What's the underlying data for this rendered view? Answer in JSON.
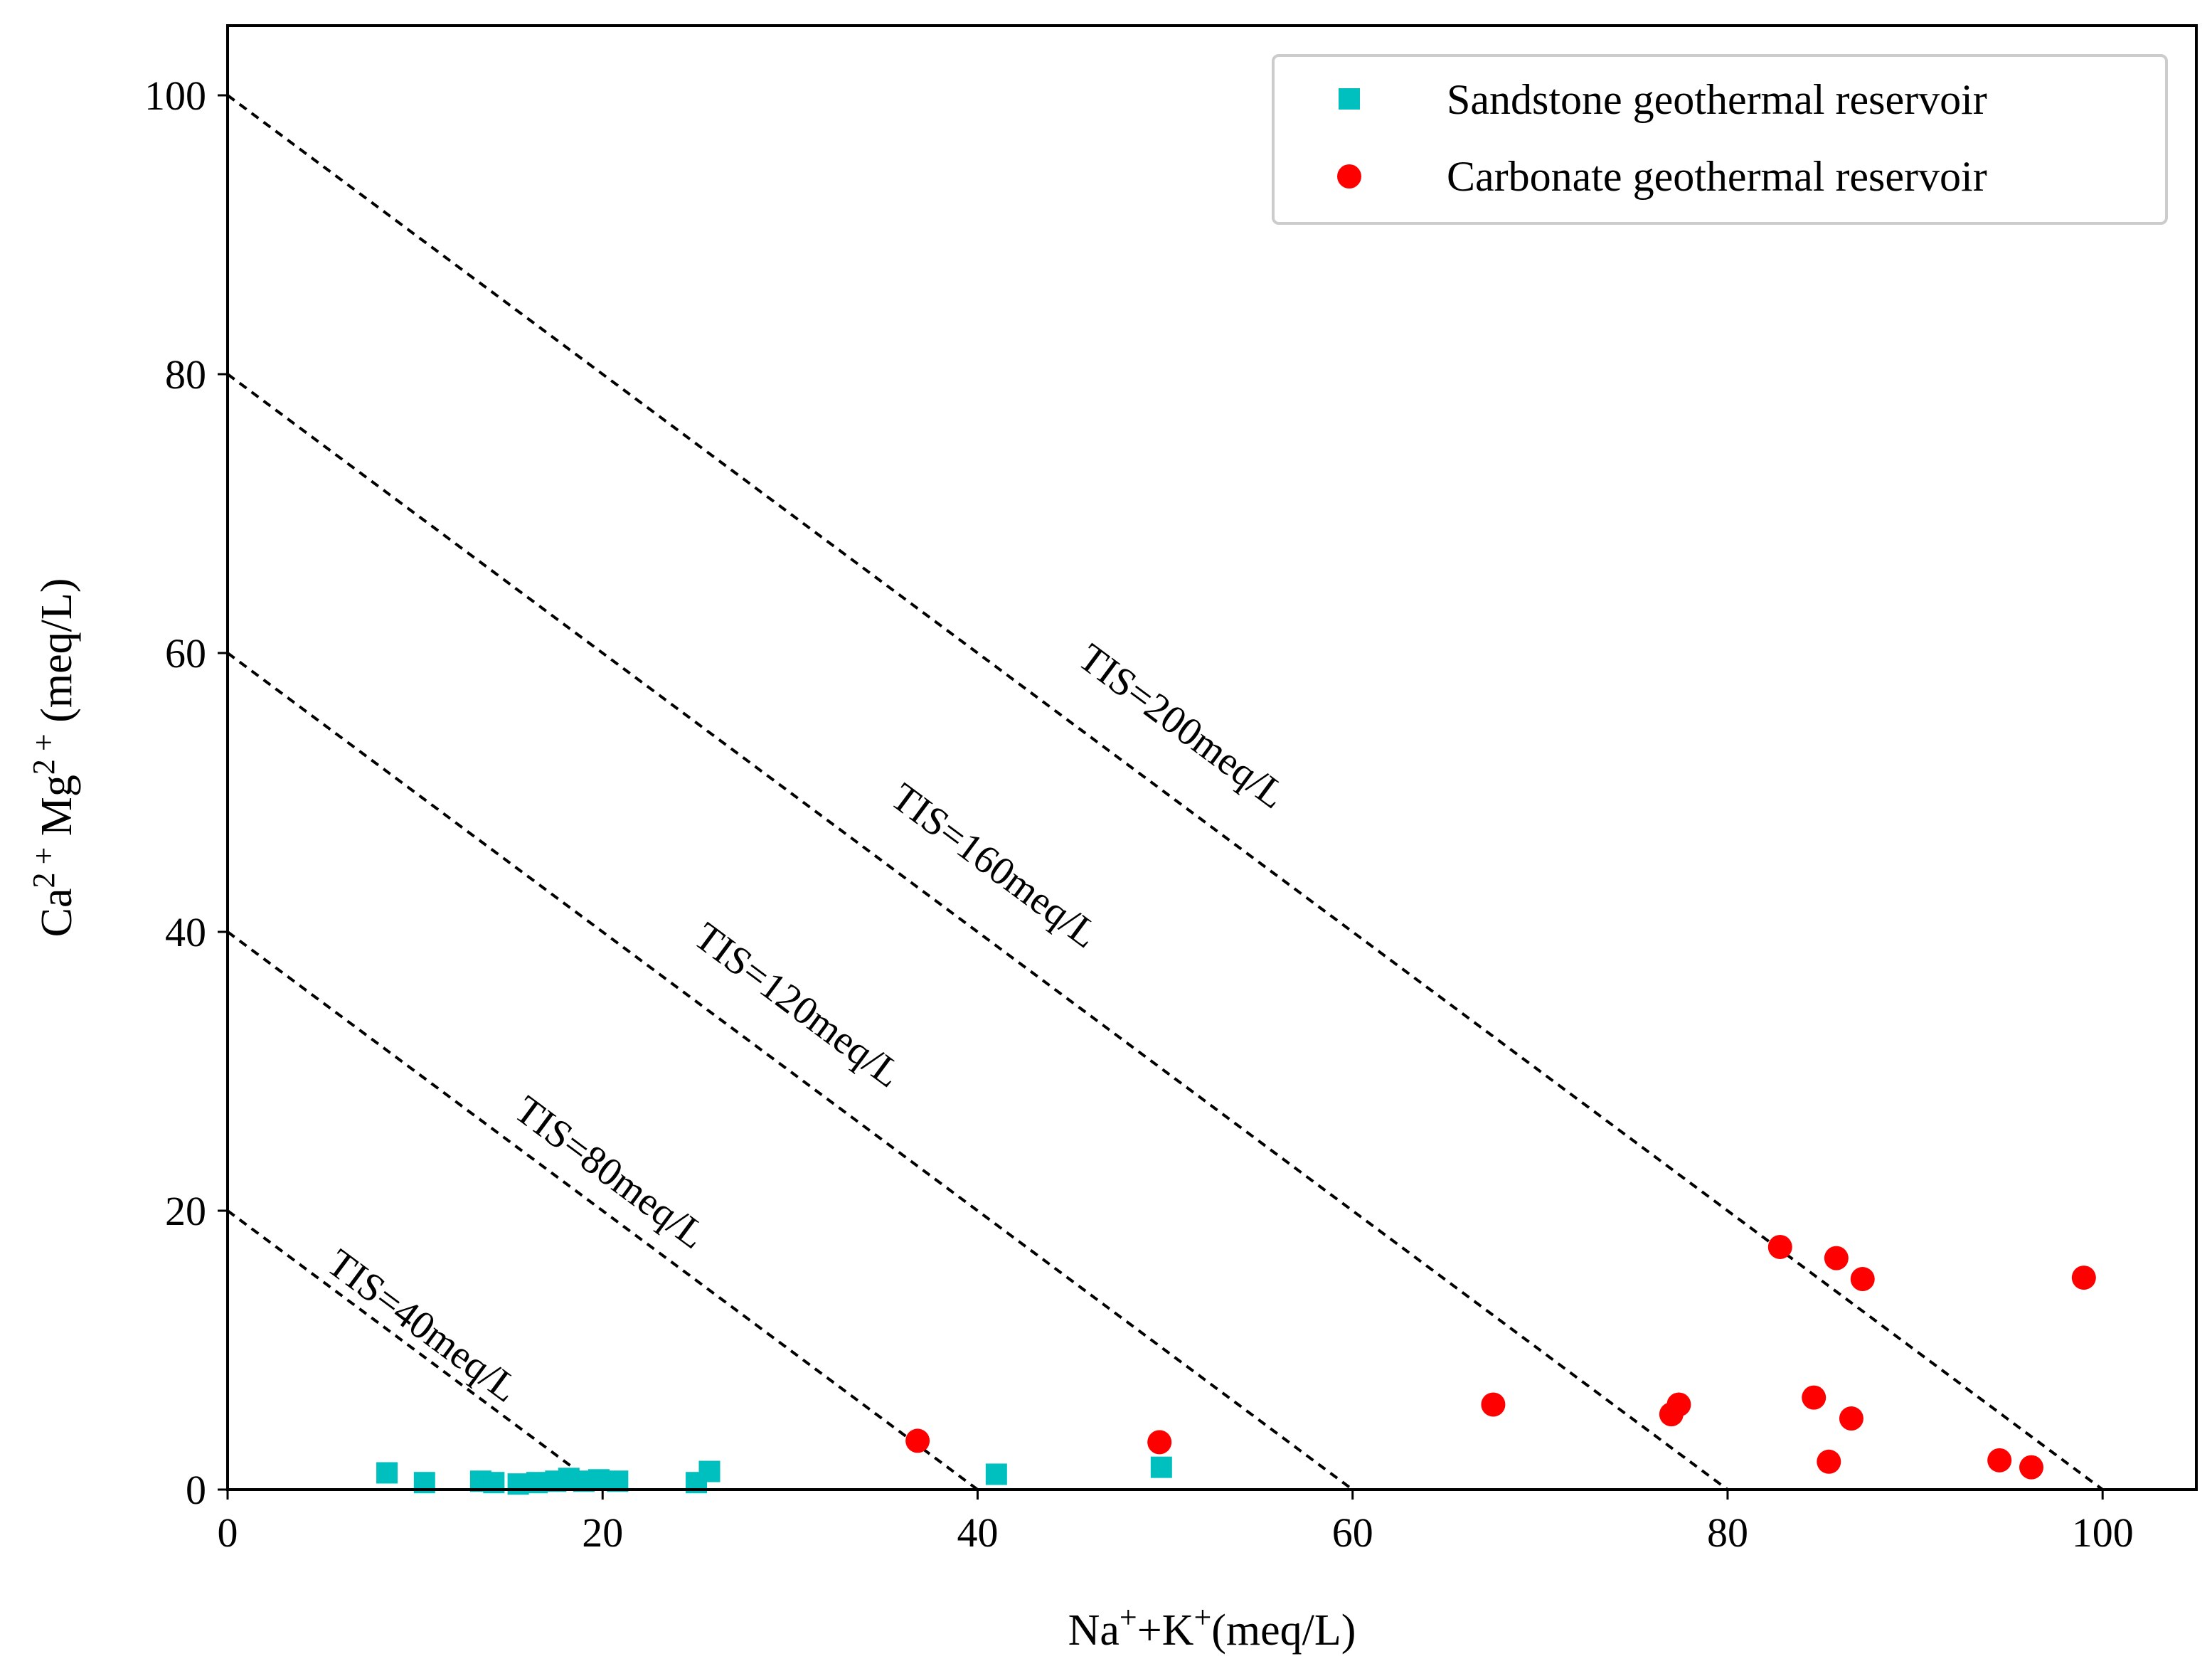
{
  "chart_data": {
    "type": "scatter",
    "title": "",
    "xlabel": {
      "main": "Na",
      "sup1": "+",
      "mid": "+K",
      "sup2": "+",
      "unit": "(meq/L)"
    },
    "ylabel": {
      "p1": "Ca",
      "sup1": "2 +",
      "p2": " Mg",
      "sup2": "2 +",
      "unit": " (meq/L)"
    },
    "xlim": [
      0,
      105
    ],
    "ylim": [
      0,
      105
    ],
    "xticks": [
      0,
      20,
      40,
      60,
      80,
      100
    ],
    "yticks": [
      0,
      20,
      40,
      60,
      80,
      100
    ],
    "grid": false,
    "legend_position": "top-right",
    "reference_lines": [
      {
        "total": 20,
        "label": "TIS=40meq/L",
        "label_at": [
          10,
          11
        ]
      },
      {
        "total": 40,
        "label": "TIS=80meq/L",
        "label_at": [
          20,
          22
        ]
      },
      {
        "total": 60,
        "label": "TIS=120meq/L",
        "label_at": [
          30,
          34
        ]
      },
      {
        "total": 80,
        "label": "TIS=160meq/L",
        "label_at": [
          40.5,
          44
        ]
      },
      {
        "total": 100,
        "label": "TIS=200meq/L",
        "label_at": [
          50.5,
          54
        ]
      }
    ],
    "series": [
      {
        "name": "Sandstone geothermal reservoir",
        "marker": "square",
        "color": "#00bfbf",
        "points": [
          [
            8.5,
            1.2
          ],
          [
            10.5,
            0.5
          ],
          [
            13.5,
            0.6
          ],
          [
            14.2,
            0.5
          ],
          [
            15.5,
            0.4
          ],
          [
            16.5,
            0.5
          ],
          [
            17.5,
            0.6
          ],
          [
            18.2,
            0.8
          ],
          [
            19.0,
            0.6
          ],
          [
            19.8,
            0.7
          ],
          [
            20.8,
            0.6
          ],
          [
            25.0,
            0.5
          ],
          [
            25.7,
            1.3
          ],
          [
            41.0,
            1.1
          ],
          [
            49.8,
            1.6
          ]
        ]
      },
      {
        "name": "Carbonate geothermal reservoir",
        "marker": "circle",
        "color": "#ff0000",
        "points": [
          [
            36.8,
            3.5
          ],
          [
            49.7,
            3.4
          ],
          [
            67.5,
            6.1
          ],
          [
            77.0,
            5.4
          ],
          [
            77.4,
            6.1
          ],
          [
            82.8,
            17.4
          ],
          [
            84.6,
            6.6
          ],
          [
            85.4,
            2.0
          ],
          [
            85.8,
            16.6
          ],
          [
            86.6,
            5.1
          ],
          [
            87.2,
            15.1
          ],
          [
            94.5,
            2.1
          ],
          [
            96.2,
            1.6
          ],
          [
            99.0,
            15.2
          ]
        ]
      }
    ]
  }
}
